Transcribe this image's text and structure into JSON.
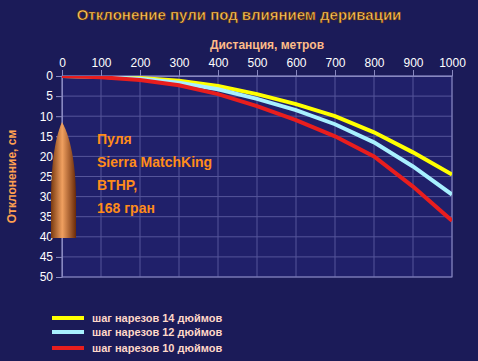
{
  "chart_data": {
    "type": "line",
    "title": "Отклонение пули под влиянием деривации",
    "x_label": "Дистанция, метров",
    "y_label": "Отклонение, см",
    "x": [
      0,
      100,
      200,
      300,
      400,
      500,
      600,
      700,
      800,
      900,
      1000
    ],
    "series": [
      {
        "name": "шаг нарезов 14 дюймов",
        "color": "#ffff00",
        "values": [
          0,
          0.1,
          0.5,
          1.2,
          2.5,
          4.5,
          7,
          10,
          14,
          19,
          24.5
        ]
      },
      {
        "name": "шаг нарезов 12 дюймов",
        "color": "#a8f0ff",
        "values": [
          0,
          0.2,
          0.7,
          1.7,
          3.3,
          5.7,
          8.5,
          12,
          16.5,
          22.5,
          29.5
        ]
      },
      {
        "name": "шаг нарезов 10 дюймов",
        "color": "#e81e1e",
        "values": [
          0,
          0.3,
          1,
          2.3,
          4.5,
          7.5,
          11,
          15,
          20,
          27.5,
          36
        ]
      }
    ],
    "xlim": [
      0,
      1000
    ],
    "xticks": [
      0,
      100,
      200,
      300,
      400,
      500,
      600,
      700,
      800,
      900,
      1000
    ],
    "ylim": [
      0,
      50
    ],
    "yticks": [
      0,
      5,
      10,
      15,
      20,
      25,
      30,
      35,
      40,
      45,
      50
    ],
    "grid": true,
    "legend": "bottom-left",
    "annotation": [
      "Пуля",
      "Sierra MatchKing",
      "BTHP,",
      "168 гран"
    ]
  }
}
